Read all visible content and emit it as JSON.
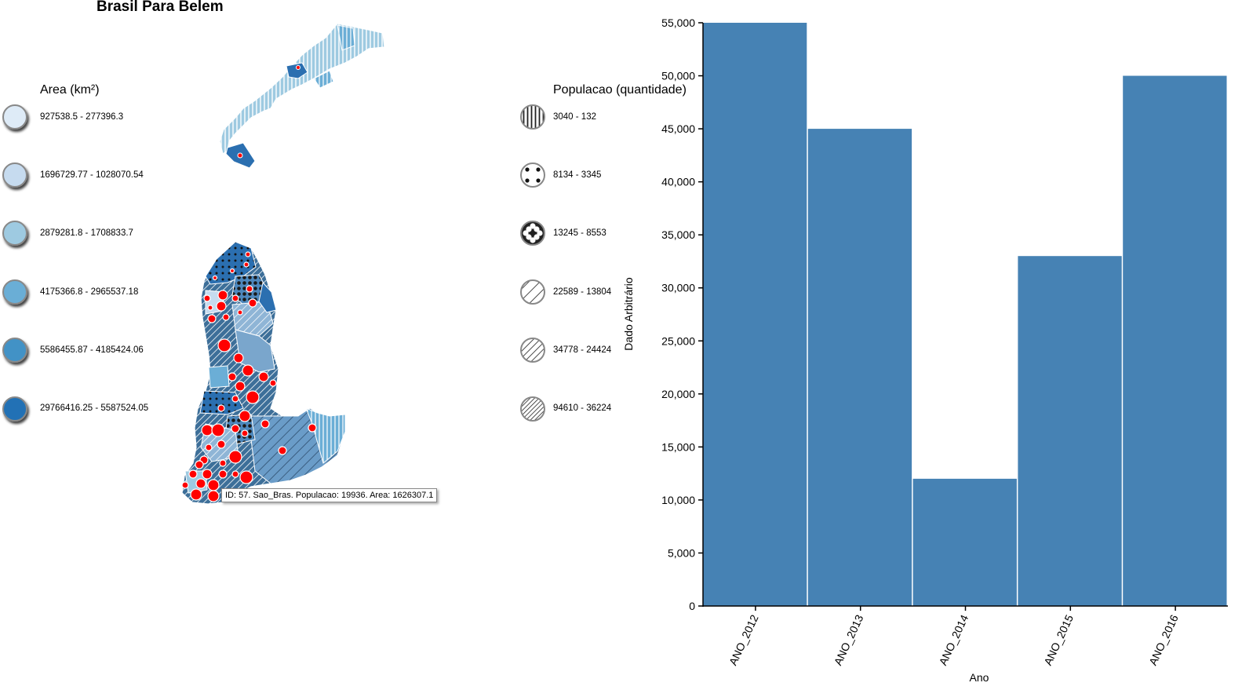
{
  "map": {
    "title": "Brasil Para Belem",
    "tooltip": "ID: 57. Sao_Bras. Populacao: 19936. Area: 1626307.1"
  },
  "area_legend": {
    "title": "Area (km²)",
    "items": [
      {
        "label": "927538.5 - 277396.3",
        "color": "#deebf7"
      },
      {
        "label": "1696729.77 - 1028070.54",
        "color": "#c6dbef"
      },
      {
        "label": "2879281.8 - 1708833.7",
        "color": "#9ecae1"
      },
      {
        "label": "4175366.8 - 2965537.18",
        "color": "#6baed6"
      },
      {
        "label": "5586455.87 - 4185424.06",
        "color": "#4292c6"
      },
      {
        "label": "29766416.25 - 5587524.05",
        "color": "#2171b5"
      }
    ]
  },
  "pop_legend": {
    "title": "Populacao (quantidade)",
    "items": [
      {
        "label": "3040 - 132",
        "pattern": "vertical-lines"
      },
      {
        "label": "8134 - 3345",
        "pattern": "sparse-dots"
      },
      {
        "label": "13245 - 8553",
        "pattern": "dense-dots"
      },
      {
        "label": "22589 - 13804",
        "pattern": "sparse-diagonal"
      },
      {
        "label": "34778 - 24424",
        "pattern": "medium-diagonal"
      },
      {
        "label": "94610 - 36224",
        "pattern": "dense-diagonal"
      }
    ]
  },
  "chart_data": {
    "type": "bar",
    "categories": [
      "ANO_2012",
      "ANO_2013",
      "ANO_2014",
      "ANO_2015",
      "ANO_2016"
    ],
    "values": [
      55000,
      45000,
      12000,
      33000,
      50000
    ],
    "xlabel": "Ano",
    "ylabel": "Dado Arbitrário",
    "ylim": [
      0,
      55000
    ],
    "yticks": [
      "0",
      "5,000",
      "10,000",
      "15,000",
      "20,000",
      "25,000",
      "30,000",
      "35,000",
      "40,000",
      "45,000",
      "50,000",
      "55,000"
    ],
    "bar_color": "#4682b4"
  }
}
